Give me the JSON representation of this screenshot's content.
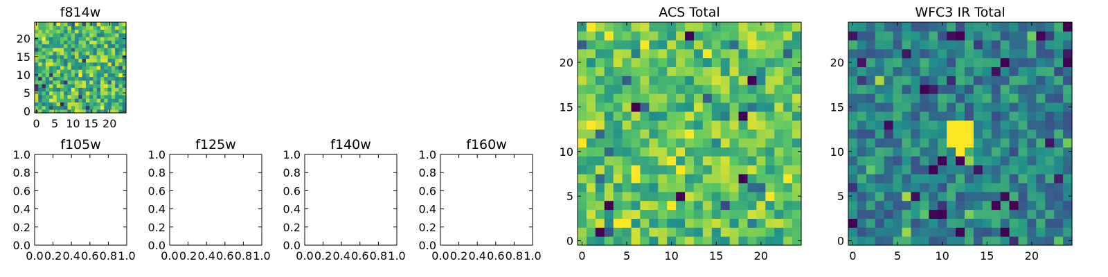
{
  "figure": {
    "background": "#ffffff"
  },
  "colormap": {
    "name": "viridis",
    "stops": [
      "#440154",
      "#3b528b",
      "#21918c",
      "#5ec962",
      "#fde725"
    ]
  },
  "chart_data": [
    {
      "id": "f814w",
      "type": "heatmap",
      "title": "f814w",
      "grid_size": [
        25,
        25
      ],
      "xlim": [
        -0.5,
        24.5
      ],
      "ylim": [
        -0.5,
        24.5
      ],
      "xticks": [
        0,
        5,
        10,
        15,
        20
      ],
      "yticks": [
        0,
        5,
        10,
        15,
        20
      ],
      "value_range": [
        0,
        1
      ],
      "background_level": 0.68,
      "noise_amplitude": 0.28,
      "seed": 814
    },
    {
      "id": "f105w",
      "type": "heatmap",
      "title": "f105w",
      "empty": true,
      "xlim": [
        0,
        1
      ],
      "ylim": [
        0,
        1
      ],
      "xticks": [
        "0.0",
        "0.2",
        "0.4",
        "0.6",
        "0.8",
        "1.0"
      ],
      "yticks": [
        "0.0",
        "0.2",
        "0.4",
        "0.6",
        "0.8",
        "1.0"
      ]
    },
    {
      "id": "f125w",
      "type": "heatmap",
      "title": "f125w",
      "empty": true,
      "xlim": [
        0,
        1
      ],
      "ylim": [
        0,
        1
      ],
      "xticks": [
        "0.0",
        "0.2",
        "0.4",
        "0.6",
        "0.8",
        "1.0"
      ],
      "yticks": [
        "0.0",
        "0.2",
        "0.4",
        "0.6",
        "0.8",
        "1.0"
      ]
    },
    {
      "id": "f140w",
      "type": "heatmap",
      "title": "f140w",
      "empty": true,
      "xlim": [
        0,
        1
      ],
      "ylim": [
        0,
        1
      ],
      "xticks": [
        "0.0",
        "0.2",
        "0.4",
        "0.6",
        "0.8",
        "1.0"
      ],
      "yticks": [
        "0.0",
        "0.2",
        "0.4",
        "0.6",
        "0.8",
        "1.0"
      ]
    },
    {
      "id": "f160w",
      "type": "heatmap",
      "title": "f160w",
      "empty": true,
      "xlim": [
        0,
        1
      ],
      "ylim": [
        0,
        1
      ],
      "xticks": [
        "0.0",
        "0.2",
        "0.4",
        "0.6",
        "0.8",
        "1.0"
      ],
      "yticks": [
        "0.0",
        "0.2",
        "0.4",
        "0.6",
        "0.8",
        "1.0"
      ]
    },
    {
      "id": "acs-total",
      "type": "heatmap",
      "title": "ACS Total",
      "grid_size": [
        25,
        25
      ],
      "xlim": [
        -0.5,
        24.5
      ],
      "ylim": [
        -0.5,
        24.5
      ],
      "xticks": [
        0,
        5,
        10,
        15,
        20
      ],
      "yticks": [
        0,
        5,
        10,
        15,
        20
      ],
      "value_range": [
        0,
        1
      ],
      "background_level": 0.72,
      "noise_amplitude": 0.22,
      "seed": 1201,
      "low_pixels": [
        [
          6,
          15
        ],
        [
          3,
          4
        ],
        [
          18,
          7
        ],
        [
          12,
          23
        ],
        [
          18,
          14
        ],
        [
          2,
          1
        ],
        [
          11,
          5
        ],
        [
          19,
          18
        ]
      ]
    },
    {
      "id": "wfc3-ir-total",
      "type": "heatmap",
      "title": "WFC3 IR Total",
      "grid_size": [
        25,
        25
      ],
      "xlim": [
        -0.5,
        24.5
      ],
      "ylim": [
        -0.5,
        24.5
      ],
      "xticks": [
        0,
        5,
        10,
        15,
        20
      ],
      "yticks": [
        0,
        5,
        10,
        15,
        20
      ],
      "value_range": [
        0,
        1
      ],
      "background_level": 0.45,
      "noise_amplitude": 0.2,
      "seed": 1402,
      "source_pixels": [
        [
          11,
          13
        ],
        [
          12,
          13
        ],
        [
          13,
          13
        ],
        [
          11,
          12
        ],
        [
          12,
          12
        ],
        [
          13,
          12
        ],
        [
          11,
          11
        ],
        [
          12,
          11
        ],
        [
          13,
          11
        ],
        [
          12,
          10
        ]
      ],
      "source_level": 1.0,
      "low_pixels": [
        [
          10,
          9
        ],
        [
          8,
          17
        ],
        [
          12,
          23
        ],
        [
          17,
          20
        ],
        [
          0,
          2
        ],
        [
          24,
          20
        ],
        [
          10,
          3
        ]
      ]
    }
  ]
}
